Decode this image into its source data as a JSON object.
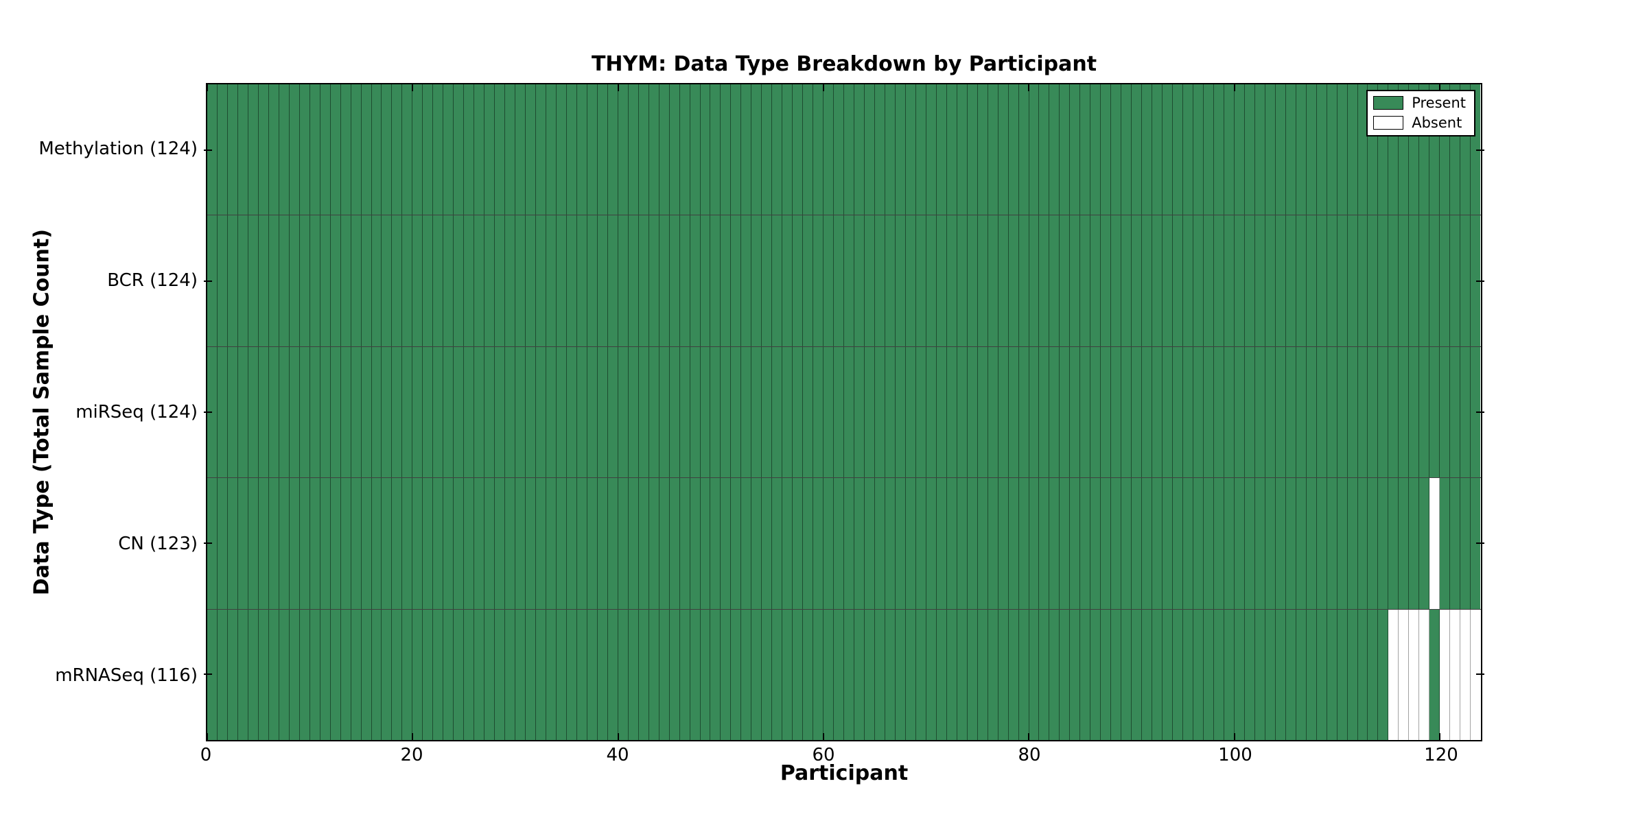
{
  "chart_data": {
    "type": "heatmap",
    "title": "THYM: Data Type Breakdown by Participant",
    "xlabel": "Participant",
    "ylabel": "Data Type (Total Sample Count)",
    "n_participants": 124,
    "xlim": [
      0,
      124
    ],
    "x_ticks": [
      0,
      20,
      40,
      60,
      80,
      100,
      120
    ],
    "grid": "cell-borders",
    "legend_position": "upper-right",
    "legend": [
      {
        "label": "Present",
        "color": "#388a58"
      },
      {
        "label": "Absent",
        "color": "#ffffff"
      }
    ],
    "colors": {
      "present": "#388a58",
      "absent": "#ffffff",
      "cell_edge_present": "rgba(0,0,0,0.45)",
      "cell_edge_absent": "#a3a3a3",
      "frame": "#000000"
    },
    "rows": [
      {
        "name": "Methylation",
        "total": 124,
        "absent_participants": []
      },
      {
        "name": "BCR",
        "total": 124,
        "absent_participants": []
      },
      {
        "name": "miRSeq",
        "total": 124,
        "absent_participants": []
      },
      {
        "name": "CN",
        "total": 123,
        "absent_participants": [
          119
        ]
      },
      {
        "name": "mRNASeq",
        "total": 116,
        "absent_participants": [
          115,
          116,
          117,
          118,
          120,
          121,
          122,
          123
        ]
      }
    ]
  }
}
